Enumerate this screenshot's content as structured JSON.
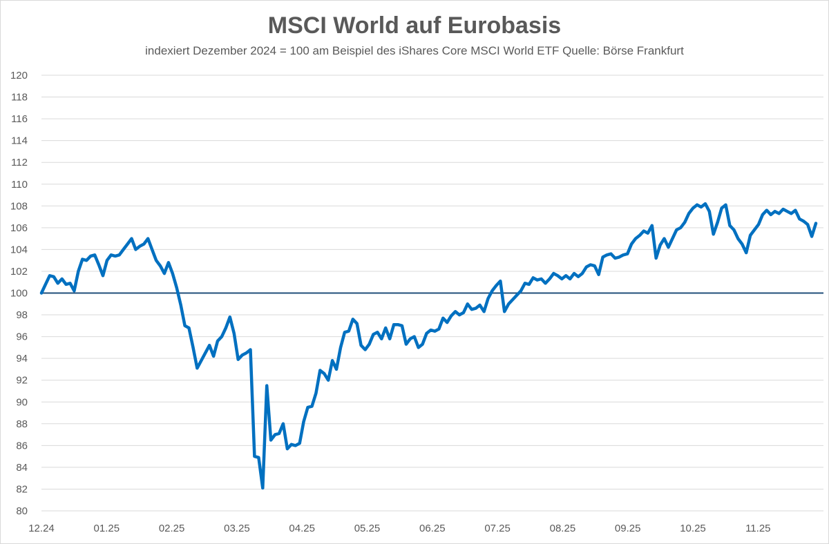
{
  "chart_data": {
    "type": "line",
    "title": "MSCI World auf Eurobasis",
    "subtitle": "indexiert Dezember 2024 = 100 am Beispiel des iShares Core MSCI World ETF Quelle: Börse Frankfurt",
    "xlabel": "",
    "ylabel": "",
    "ylim": [
      80,
      120
    ],
    "ytick_step": 2,
    "x_tick_labels": [
      "12.24",
      "01.25",
      "02.25",
      "03.25",
      "04.25",
      "05.25",
      "06.25",
      "07.25",
      "08.25",
      "09.25",
      "10.25",
      "11.25"
    ],
    "grid": true,
    "legend": "none",
    "reference_line": {
      "y": 100,
      "color": "#1f4e79"
    },
    "series": [
      {
        "color": "#0070c0",
        "points": [
          [
            0,
            100
          ],
          [
            1,
            100.8
          ],
          [
            2,
            101.6
          ],
          [
            3,
            101.5
          ],
          [
            4,
            100.9
          ],
          [
            5,
            101.3
          ],
          [
            6,
            100.8
          ],
          [
            7,
            100.9
          ],
          [
            8,
            100.2
          ],
          [
            9,
            102
          ],
          [
            10,
            103.1
          ],
          [
            11,
            103
          ],
          [
            12,
            103.4
          ],
          [
            13,
            103.5
          ],
          [
            14,
            102.6
          ],
          [
            15,
            101.6
          ],
          [
            16,
            103
          ],
          [
            17,
            103.5
          ],
          [
            18,
            103.4
          ],
          [
            19,
            103.5
          ],
          [
            20,
            104
          ],
          [
            21,
            104.5
          ],
          [
            22,
            105
          ],
          [
            23,
            104
          ],
          [
            24,
            104.3
          ],
          [
            25,
            104.5
          ],
          [
            26,
            105
          ],
          [
            27,
            104
          ],
          [
            28,
            103
          ],
          [
            29,
            102.5
          ],
          [
            30,
            101.8
          ],
          [
            31,
            102.8
          ],
          [
            32,
            101.8
          ],
          [
            33,
            100.5
          ],
          [
            34,
            98.9
          ],
          [
            35,
            97
          ],
          [
            36,
            96.8
          ],
          [
            37,
            95
          ],
          [
            38,
            93.1
          ],
          [
            39,
            93.8
          ],
          [
            40,
            94.5
          ],
          [
            41,
            95.2
          ],
          [
            42,
            94.2
          ],
          [
            43,
            95.6
          ],
          [
            44,
            96
          ],
          [
            45,
            96.8
          ],
          [
            46,
            97.8
          ],
          [
            47,
            96.3
          ],
          [
            48,
            93.9
          ],
          [
            49,
            94.3
          ],
          [
            50,
            94.5
          ],
          [
            51,
            94.8
          ],
          [
            52,
            85
          ],
          [
            53,
            84.9
          ],
          [
            54,
            82.1
          ],
          [
            55,
            91.5
          ],
          [
            56,
            86.5
          ],
          [
            57,
            87
          ],
          [
            58,
            87.1
          ],
          [
            59,
            88
          ],
          [
            60,
            85.7
          ],
          [
            61,
            86.1
          ],
          [
            62,
            86
          ],
          [
            63,
            86.2
          ],
          [
            64,
            88.2
          ],
          [
            65,
            89.5
          ],
          [
            66,
            89.6
          ],
          [
            67,
            90.8
          ],
          [
            68,
            92.9
          ],
          [
            69,
            92.6
          ],
          [
            70,
            92
          ],
          [
            71,
            93.8
          ],
          [
            72,
            93
          ],
          [
            73,
            95
          ],
          [
            74,
            96.4
          ],
          [
            75,
            96.5
          ],
          [
            76,
            97.6
          ],
          [
            77,
            97.2
          ],
          [
            78,
            95.2
          ],
          [
            79,
            94.8
          ],
          [
            80,
            95.3
          ],
          [
            81,
            96.2
          ],
          [
            82,
            96.4
          ],
          [
            83,
            95.8
          ],
          [
            84,
            96.8
          ],
          [
            85,
            95.8
          ],
          [
            86,
            97.1
          ],
          [
            87,
            97.1
          ],
          [
            88,
            97
          ],
          [
            89,
            95.3
          ],
          [
            90,
            95.8
          ],
          [
            91,
            96
          ],
          [
            92,
            95
          ],
          [
            93,
            95.3
          ],
          [
            94,
            96.3
          ],
          [
            95,
            96.6
          ],
          [
            96,
            96.5
          ],
          [
            97,
            96.7
          ],
          [
            98,
            97.7
          ],
          [
            99,
            97.3
          ],
          [
            100,
            97.9
          ],
          [
            101,
            98.3
          ],
          [
            102,
            98
          ],
          [
            103,
            98.2
          ],
          [
            104,
            99
          ],
          [
            105,
            98.5
          ],
          [
            106,
            98.6
          ],
          [
            107,
            98.9
          ],
          [
            108,
            98.3
          ],
          [
            109,
            99.5
          ],
          [
            110,
            100.2
          ],
          [
            111,
            100.7
          ],
          [
            112,
            101.1
          ],
          [
            113,
            98.3
          ],
          [
            114,
            99
          ],
          [
            115,
            99.4
          ],
          [
            116,
            99.8
          ],
          [
            117,
            100.2
          ],
          [
            118,
            100.9
          ],
          [
            119,
            100.8
          ],
          [
            120,
            101.4
          ],
          [
            121,
            101.2
          ],
          [
            122,
            101.3
          ],
          [
            123,
            100.9
          ],
          [
            124,
            101.3
          ],
          [
            125,
            101.8
          ],
          [
            126,
            101.6
          ],
          [
            127,
            101.3
          ],
          [
            128,
            101.6
          ],
          [
            129,
            101.3
          ],
          [
            130,
            101.8
          ],
          [
            131,
            101.5
          ],
          [
            132,
            101.8
          ],
          [
            133,
            102.4
          ],
          [
            134,
            102.6
          ],
          [
            135,
            102.5
          ],
          [
            136,
            101.7
          ],
          [
            137,
            103.3
          ],
          [
            138,
            103.5
          ],
          [
            139,
            103.6
          ],
          [
            140,
            103.2
          ],
          [
            141,
            103.3
          ],
          [
            142,
            103.5
          ],
          [
            143,
            103.6
          ],
          [
            144,
            104.5
          ],
          [
            145,
            105
          ],
          [
            146,
            105.3
          ],
          [
            147,
            105.7
          ],
          [
            148,
            105.5
          ],
          [
            149,
            106.2
          ],
          [
            150,
            103.2
          ],
          [
            151,
            104.4
          ],
          [
            152,
            105
          ],
          [
            153,
            104.2
          ],
          [
            154,
            105
          ],
          [
            155,
            105.8
          ],
          [
            156,
            106
          ],
          [
            157,
            106.5
          ],
          [
            158,
            107.3
          ],
          [
            159,
            107.8
          ],
          [
            160,
            108.1
          ],
          [
            161,
            107.9
          ],
          [
            162,
            108.2
          ],
          [
            163,
            107.5
          ],
          [
            164,
            105.4
          ],
          [
            165,
            106.5
          ],
          [
            166,
            107.8
          ],
          [
            167,
            108.1
          ],
          [
            168,
            106.2
          ],
          [
            169,
            105.8
          ],
          [
            170,
            105
          ],
          [
            171,
            104.5
          ],
          [
            172,
            103.7
          ],
          [
            173,
            105.3
          ],
          [
            174,
            105.8
          ],
          [
            175,
            106.3
          ],
          [
            176,
            107.2
          ],
          [
            177,
            107.6
          ],
          [
            178,
            107.2
          ],
          [
            179,
            107.5
          ],
          [
            180,
            107.3
          ],
          [
            181,
            107.7
          ],
          [
            182,
            107.5
          ],
          [
            183,
            107.3
          ],
          [
            184,
            107.6
          ],
          [
            185,
            106.8
          ],
          [
            186,
            106.6
          ],
          [
            187,
            106.3
          ],
          [
            188,
            105.2
          ],
          [
            189,
            106.4
          ]
        ]
      }
    ]
  }
}
